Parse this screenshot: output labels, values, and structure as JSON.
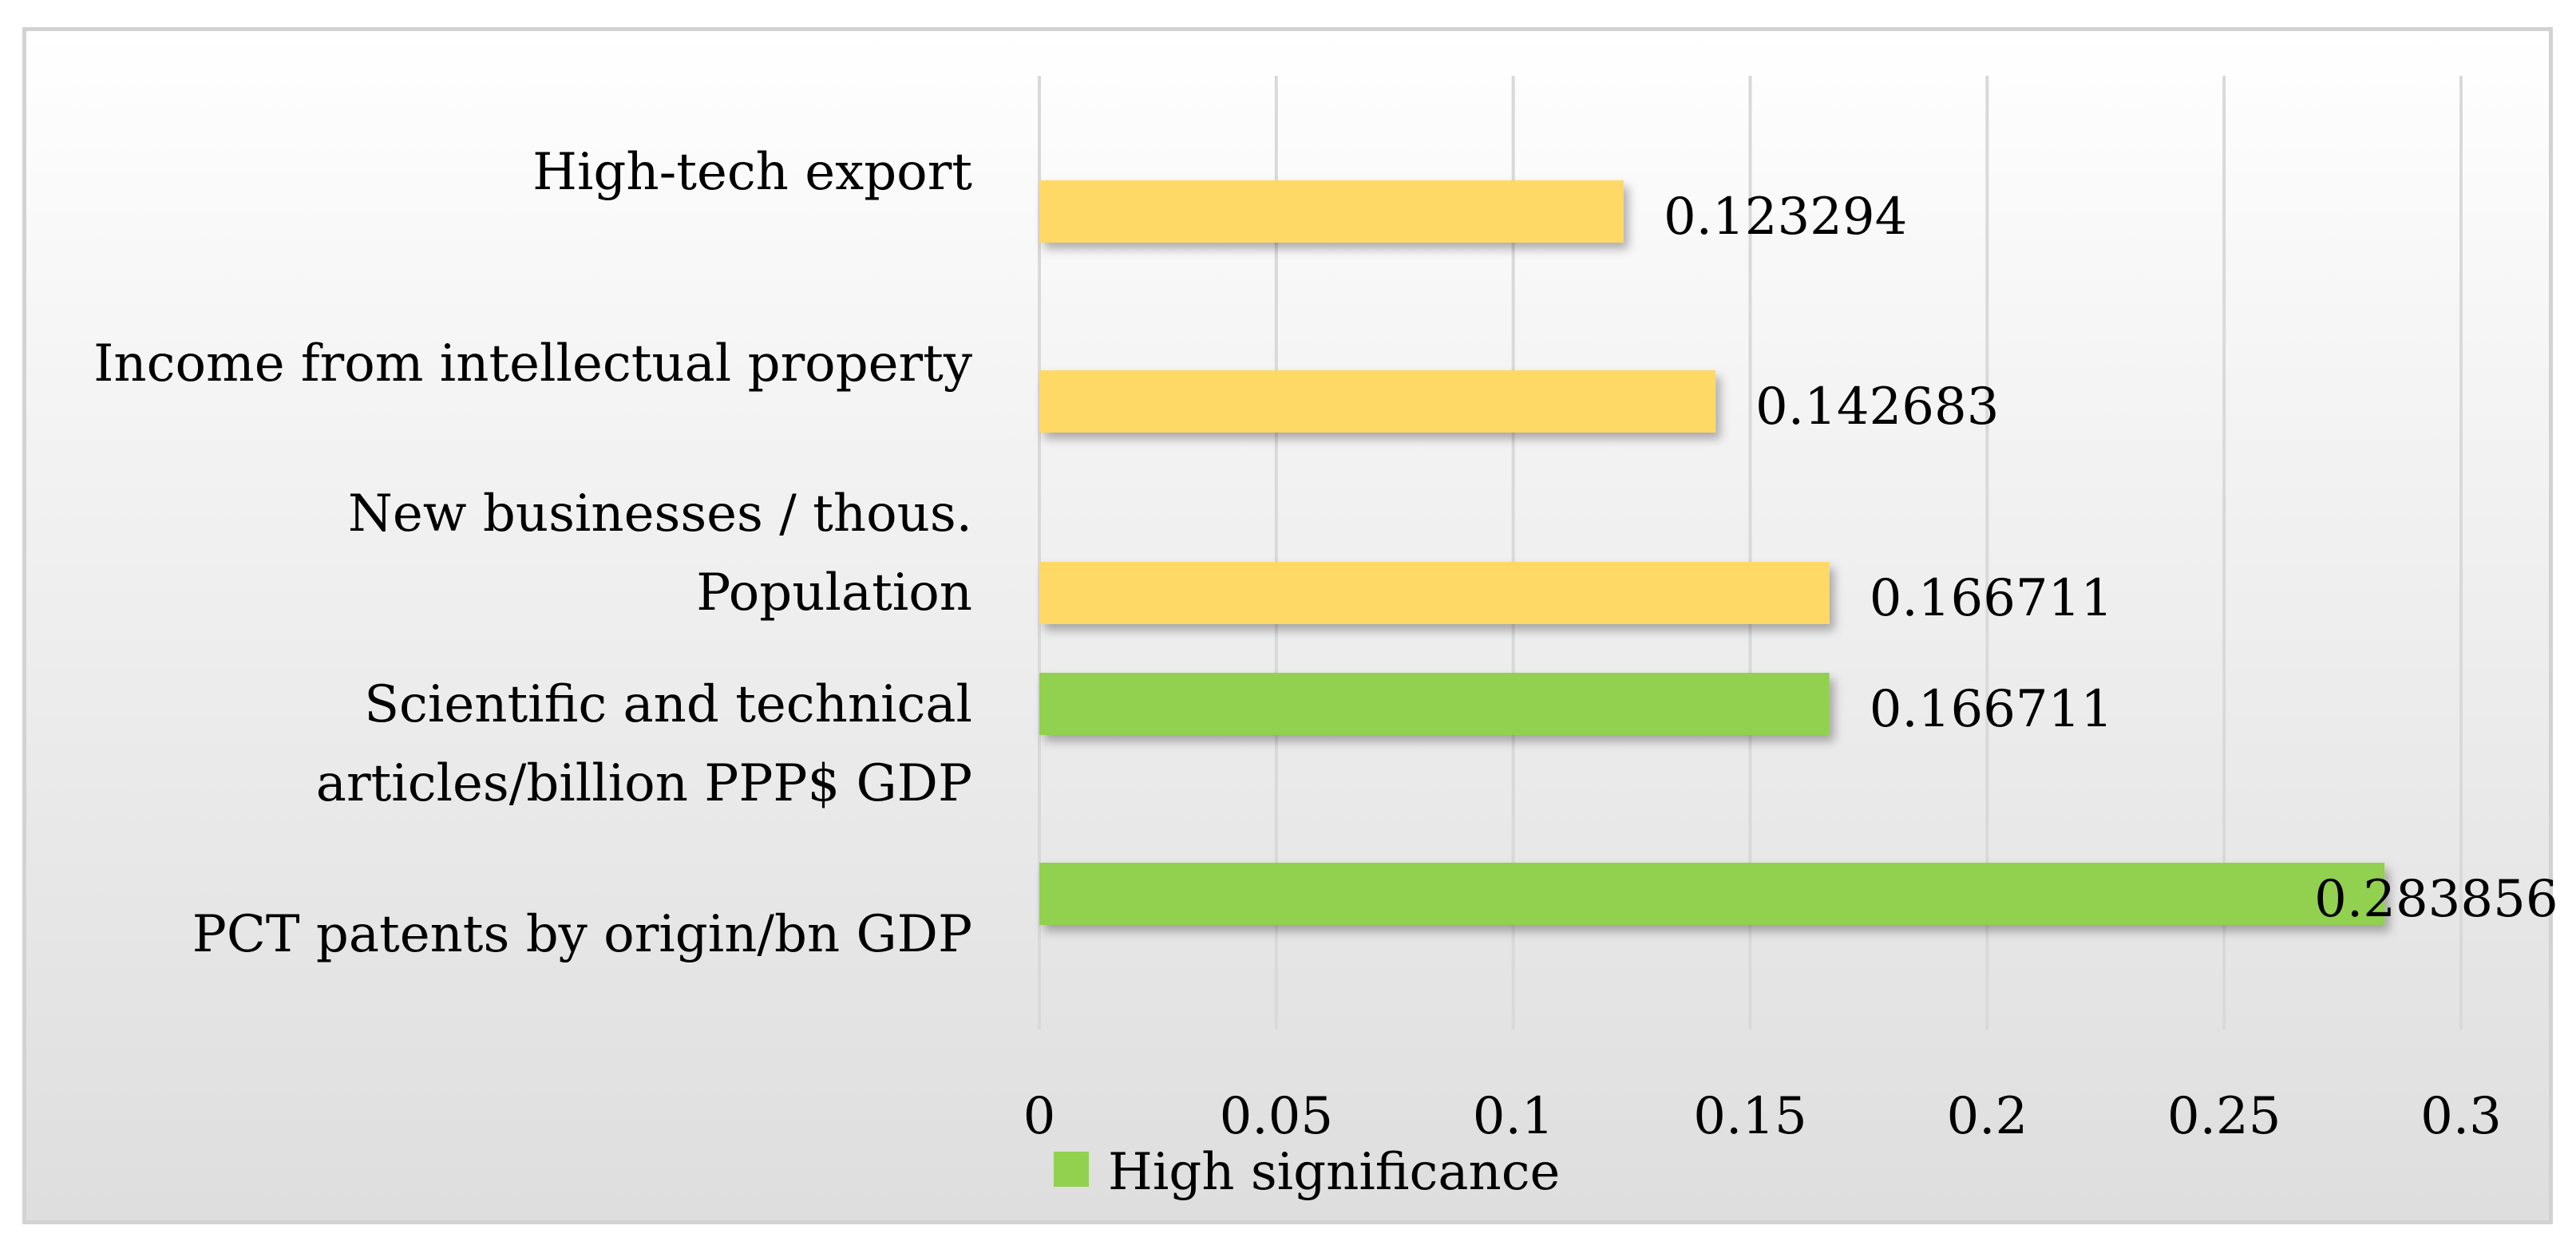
{
  "chart_data": {
    "type": "bar",
    "orientation": "horizontal",
    "title": "",
    "xlabel": "",
    "ylabel": "",
    "xlim": [
      0,
      0.3
    ],
    "xticks": [
      0,
      0.05,
      0.1,
      0.15,
      0.2,
      0.25,
      0.3
    ],
    "xtick_labels": [
      "0",
      "0.05",
      "0.1",
      "0.15",
      "0.2",
      "0.25",
      "0.3"
    ],
    "grid": "vertical",
    "legend_position": "bottom",
    "legend": [
      {
        "label": "High significance",
        "color": "#92d050"
      }
    ],
    "bars": [
      {
        "category_lines": [
          "High-tech export"
        ],
        "value": 0.123294,
        "value_label": "0.123294",
        "color": "#ffd966",
        "group": ""
      },
      {
        "category_lines": [
          "Income from intellectual property"
        ],
        "value": 0.142683,
        "value_label": "0.142683",
        "color": "#ffd966",
        "group": ""
      },
      {
        "category_lines": [
          "New businesses / thous.",
          "Population"
        ],
        "value": 0.166711,
        "value_label": "0.166711",
        "color": "#ffd966",
        "group": ""
      },
      {
        "category_lines": [
          "Scientific and technical",
          "articles/billion PPP$ GDP"
        ],
        "value": 0.166711,
        "value_label": "0.166711",
        "color": "#92d050",
        "group": "High significance"
      },
      {
        "category_lines": [
          "PCT patents by origin/bn GDP"
        ],
        "value": 0.283856,
        "value_label": "0.283856",
        "color": "#92d050",
        "group": "High significance"
      }
    ]
  }
}
